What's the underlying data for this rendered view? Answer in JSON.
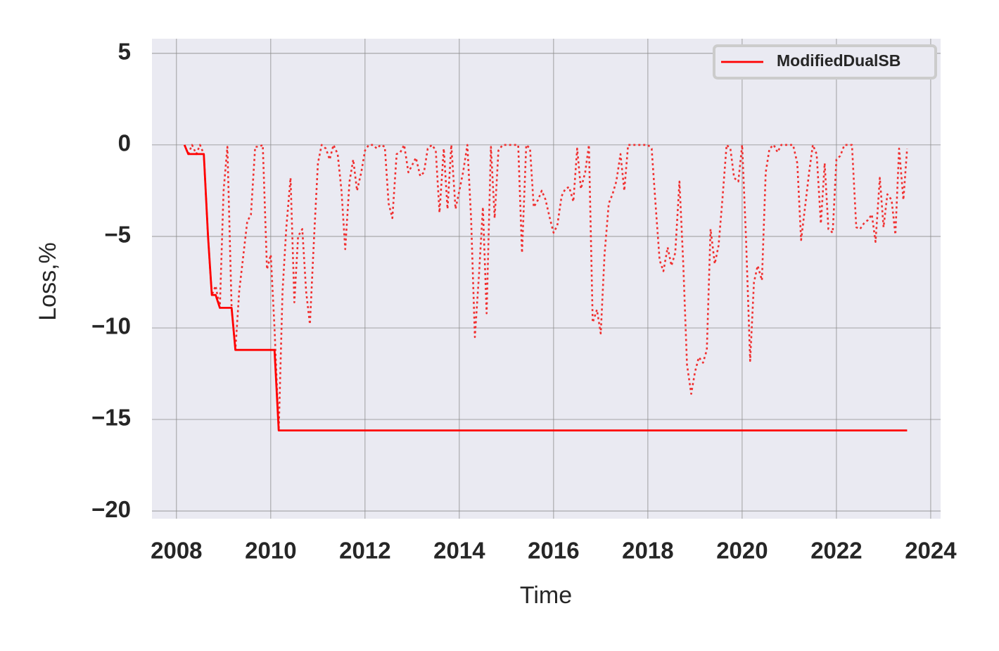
{
  "chart_data": {
    "type": "line",
    "xlabel": "Time",
    "ylabel": "Loss,%",
    "xlim": [
      2007.48,
      2024.21
    ],
    "xticks": [
      2008,
      2010,
      2012,
      2014,
      2016,
      2018,
      2020,
      2022,
      2024
    ],
    "ylim": [
      -20.42,
      5.8
    ],
    "yticks": [
      {
        "value": -20,
        "label": "−20"
      },
      {
        "value": -15,
        "label": "−15"
      },
      {
        "value": -10,
        "label": "−10"
      },
      {
        "value": -5,
        "label": "−5"
      },
      0,
      5
    ],
    "grid": true,
    "legend": "upper right",
    "series": [
      {
        "name": "ModifiedDualSB",
        "color": "#ff0000",
        "linestyle": "solid",
        "x": [
          2008.17,
          2008.25,
          2008.5,
          2008.58,
          2008.67,
          2008.75,
          2008.83,
          2008.92,
          2009.08,
          2009.17,
          2009.25,
          2010.0,
          2010.08,
          2010.17,
          2023.5
        ],
        "values": [
          0,
          -0.5,
          -0.5,
          -0.5,
          -5,
          -8.2,
          -8.2,
          -8.9,
          -8.9,
          -8.9,
          -11.2,
          -11.2,
          -11.2,
          -15.6,
          -15.6
        ]
      },
      {
        "color": "#f03030",
        "linestyle": "dotted",
        "x": [
          2008.17,
          2008.25,
          2008.33,
          2008.42,
          2008.5,
          2008.58,
          2008.67,
          2008.75,
          2008.83,
          2008.92,
          2009.0,
          2009.08,
          2009.17,
          2009.25,
          2009.33,
          2009.42,
          2009.5,
          2009.58,
          2009.67,
          2009.75,
          2009.83,
          2009.92,
          2010.0,
          2010.08,
          2010.17,
          2010.25,
          2010.33,
          2010.42,
          2010.5,
          2010.58,
          2010.67,
          2010.75,
          2010.83,
          2010.92,
          2011.0,
          2011.08,
          2011.17,
          2011.25,
          2011.33,
          2011.42,
          2011.5,
          2011.58,
          2011.67,
          2011.75,
          2011.83,
          2011.92,
          2012.0,
          2012.08,
          2012.17,
          2012.25,
          2012.33,
          2012.42,
          2012.5,
          2012.58,
          2012.67,
          2012.75,
          2012.83,
          2012.92,
          2013.0,
          2013.08,
          2013.17,
          2013.25,
          2013.33,
          2013.42,
          2013.5,
          2013.58,
          2013.67,
          2013.75,
          2013.83,
          2013.92,
          2014.0,
          2014.08,
          2014.17,
          2014.25,
          2014.33,
          2014.42,
          2014.5,
          2014.58,
          2014.67,
          2014.75,
          2014.83,
          2014.92,
          2015.0,
          2015.08,
          2015.17,
          2015.25,
          2015.33,
          2015.42,
          2015.5,
          2015.58,
          2015.67,
          2015.75,
          2015.83,
          2015.92,
          2016.0,
          2016.08,
          2016.17,
          2016.25,
          2016.33,
          2016.42,
          2016.5,
          2016.58,
          2016.67,
          2016.75,
          2016.83,
          2016.92,
          2017.0,
          2017.08,
          2017.17,
          2017.25,
          2017.33,
          2017.42,
          2017.5,
          2017.58,
          2017.67,
          2017.75,
          2017.83,
          2017.92,
          2018.0,
          2018.08,
          2018.17,
          2018.25,
          2018.33,
          2018.42,
          2018.5,
          2018.58,
          2018.67,
          2018.75,
          2018.83,
          2018.92,
          2019.0,
          2019.08,
          2019.17,
          2019.25,
          2019.33,
          2019.42,
          2019.5,
          2019.58,
          2019.67,
          2019.75,
          2019.83,
          2019.92,
          2020.0,
          2020.08,
          2020.17,
          2020.25,
          2020.33,
          2020.42,
          2020.5,
          2020.58,
          2020.67,
          2020.75,
          2020.83,
          2020.92,
          2021.0,
          2021.08,
          2021.17,
          2021.25,
          2021.33,
          2021.42,
          2021.5,
          2021.58,
          2021.67,
          2021.75,
          2021.83,
          2021.92,
          2022.0,
          2022.08,
          2022.17,
          2022.25,
          2022.33,
          2022.42,
          2022.5,
          2022.58,
          2022.67,
          2022.75,
          2022.83,
          2022.92,
          2023.0,
          2023.08,
          2023.17,
          2023.25,
          2023.33,
          2023.42,
          2023.5
        ],
        "values": [
          0,
          -0.5,
          0,
          -0.5,
          0,
          -0.5,
          -5,
          -8.2,
          -7.7,
          -8.9,
          -2.5,
          -0.1,
          -8.9,
          -11.2,
          -8,
          -6,
          -4.2,
          -3.8,
          -0.1,
          -0.1,
          0,
          -6.8,
          -6,
          -10,
          -15.6,
          -8,
          -4.5,
          -1.8,
          -8.6,
          -5,
          -4.6,
          -8,
          -9.8,
          -5,
          -1,
          0,
          -0.2,
          -0.8,
          0,
          -0.5,
          -2.5,
          -5.7,
          -2,
          -0.8,
          -2.5,
          -1.5,
          -0.3,
          0,
          0,
          -0.2,
          0,
          -0.1,
          -3.2,
          -4,
          -0.5,
          -0.4,
          0,
          -1.5,
          -1.1,
          -0.7,
          -1.7,
          -1.5,
          -0.2,
          0,
          -0.3,
          -3.7,
          -0.2,
          -3.5,
          0,
          -3.5,
          -2.5,
          -1.5,
          0,
          -4,
          -10.5,
          -7,
          -3.4,
          -9.2,
          -0.1,
          -4,
          -0.3,
          0,
          0,
          0,
          0,
          0,
          -5.9,
          0,
          -0.2,
          -3.4,
          -3,
          -2.5,
          -3,
          -4,
          -4.8,
          -4.4,
          -2.8,
          -2.4,
          -2.3,
          -3.1,
          -0.2,
          -2.4,
          -1.5,
          0,
          -9.7,
          -9,
          -10.3,
          -6,
          -3.2,
          -2.7,
          -2,
          -0.5,
          -2.5,
          0,
          0,
          0,
          0,
          0,
          0,
          -0.2,
          -3.5,
          -6.3,
          -6.9,
          -5.6,
          -6.6,
          -5.9,
          -2,
          -6.5,
          -12,
          -13.6,
          -12.4,
          -11.6,
          -11.9,
          -11.2,
          -4.6,
          -6.5,
          -5.5,
          -3,
          0,
          -0.2,
          -1.8,
          -2,
          0,
          -5,
          -11.8,
          -7.5,
          -6.6,
          -7.4,
          -1.5,
          -0.2,
          0,
          -0.4,
          0,
          0,
          0,
          0,
          -1,
          -5.2,
          -3.5,
          -1.5,
          0,
          -0.5,
          -4.3,
          -1,
          -4.6,
          -4.8,
          -0.8,
          -0.6,
          0,
          0,
          0,
          -4.5,
          -4.6,
          -4.3,
          -4.1,
          -3.8,
          -5.3,
          -1.8,
          -4.5,
          -2.7,
          -3,
          -4.9,
          -0.2,
          -3,
          -0.2
        ]
      }
    ]
  }
}
